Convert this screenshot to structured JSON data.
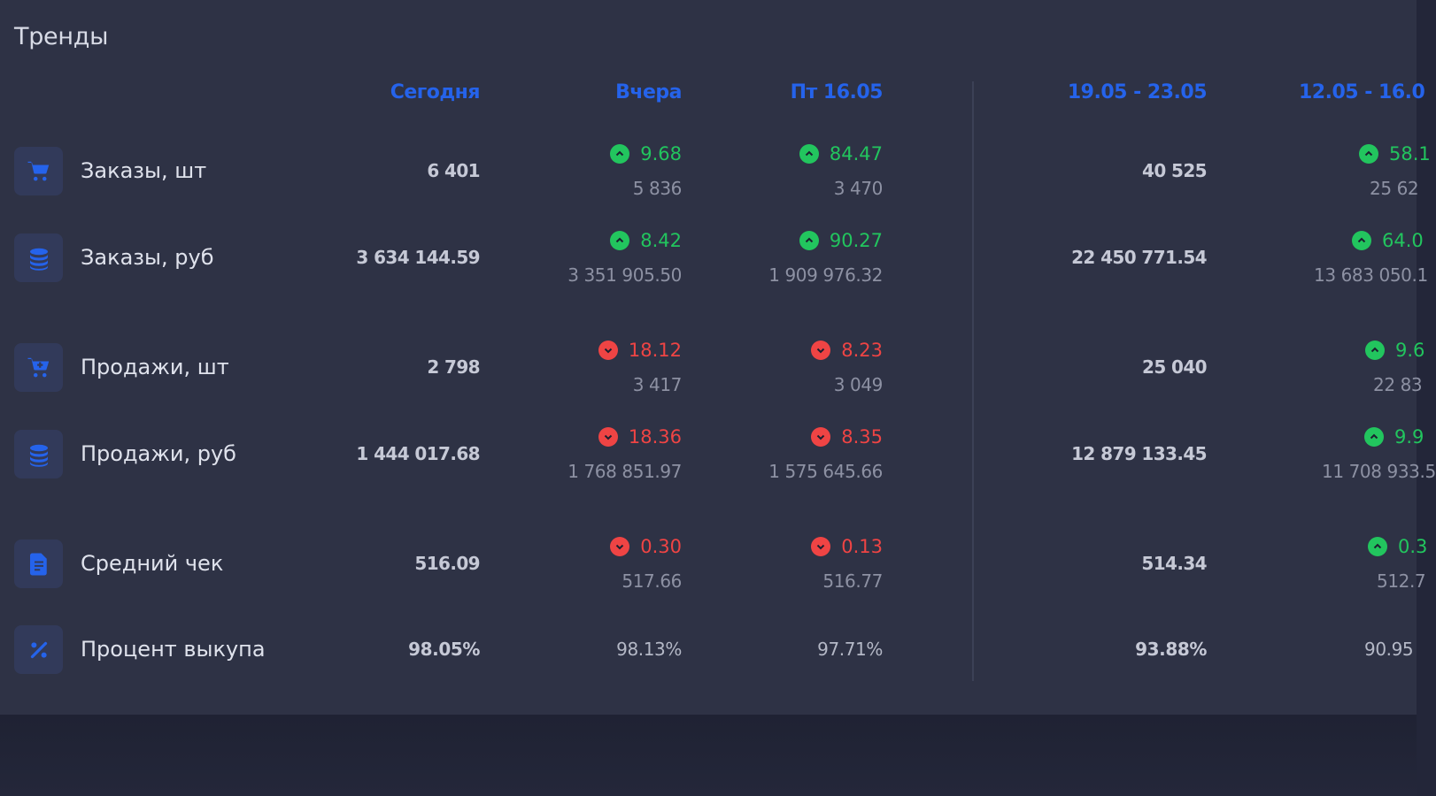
{
  "title": "Тренды",
  "columns": {
    "today": "Сегодня",
    "yesterday": "Вчера",
    "friday": "Пт 16.05",
    "week1": "19.05 - 23.05",
    "week2": "12.05 - 16.0"
  },
  "rows": [
    {
      "label": "Заказы, шт",
      "icon": "cart-icon",
      "today": "6 401",
      "yesterday": {
        "delta": "9.68",
        "dir": "up",
        "prev": "5 836"
      },
      "friday": {
        "delta": "84.47",
        "dir": "up",
        "prev": "3 470"
      },
      "week1": "40 525",
      "week2": {
        "delta": "58.1",
        "dir": "up",
        "prev": "25 62"
      }
    },
    {
      "label": "Заказы, руб",
      "icon": "coins-icon",
      "today": "3 634 144.59",
      "yesterday": {
        "delta": "8.42",
        "dir": "up",
        "prev": "3 351 905.50"
      },
      "friday": {
        "delta": "90.27",
        "dir": "up",
        "prev": "1 909 976.32"
      },
      "week1": "22 450 771.54",
      "week2": {
        "delta": "64.0",
        "dir": "up",
        "prev": "13 683 050.1"
      }
    },
    {
      "label": "Продажи, шт",
      "icon": "cart-plus-icon",
      "today": "2 798",
      "yesterday": {
        "delta": "18.12",
        "dir": "down",
        "prev": "3 417"
      },
      "friday": {
        "delta": "8.23",
        "dir": "down",
        "prev": "3 049"
      },
      "week1": "25 040",
      "week2": {
        "delta": "9.6",
        "dir": "up",
        "prev": "22 83"
      }
    },
    {
      "label": "Продажи, руб",
      "icon": "coins-icon",
      "today": "1 444 017.68",
      "yesterday": {
        "delta": "18.36",
        "dir": "down",
        "prev": "1 768 851.97"
      },
      "friday": {
        "delta": "8.35",
        "dir": "down",
        "prev": "1 575 645.66"
      },
      "week1": "12 879 133.45",
      "week2": {
        "delta": "9.9",
        "dir": "up",
        "prev": "11 708 933.5"
      }
    },
    {
      "label": "Средний чек",
      "icon": "receipt-icon",
      "today": "516.09",
      "yesterday": {
        "delta": "0.30",
        "dir": "down",
        "prev": "517.66"
      },
      "friday": {
        "delta": "0.13",
        "dir": "down",
        "prev": "516.77"
      },
      "week1": "514.34",
      "week2": {
        "delta": "0.3",
        "dir": "up",
        "prev": "512.7"
      }
    },
    {
      "label": "Процент выкупа",
      "icon": "percent-icon",
      "today": "98.05%",
      "yesterday": "98.13%",
      "friday": "97.71%",
      "week1": "93.88%",
      "week2": "90.95"
    }
  ],
  "colors": {
    "accent": "#2563eb",
    "up": "#22c55e",
    "down": "#ef4444",
    "panel": "#2e3245"
  }
}
